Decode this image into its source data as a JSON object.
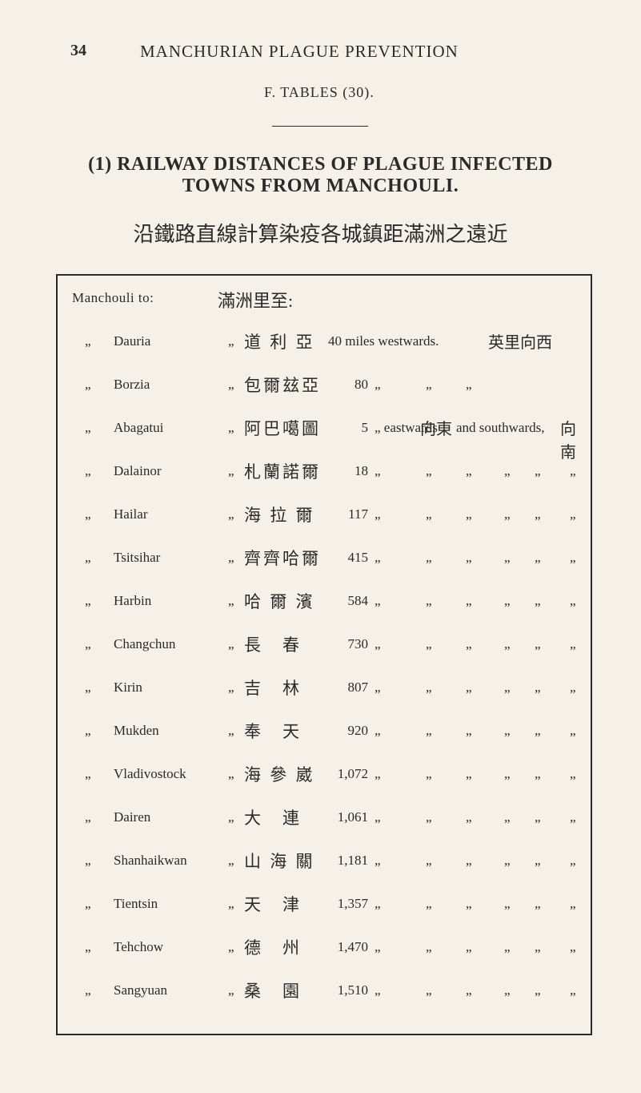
{
  "page_number": "34",
  "running_header": "MANCHURIAN  PLAGUE  PREVENTION",
  "section_label": "F.  TABLES  (30).",
  "main_heading_line1": "(1) RAILWAY DISTANCES OF PLAGUE INFECTED",
  "main_heading_line2": "TOWNS FROM MANCHOULI.",
  "chinese_heading": "沿鐵路直線計算染疫各城鎮距滿洲之遠近",
  "table_header_left": "Manchouli  to:",
  "table_header_chinese": "滿洲里至:",
  "rows": [
    {
      "place": "Dauria",
      "chinese": "道 利 亞",
      "first_row_text": "40 miles  westwards.",
      "first_row_chinese_end": "英里向西"
    },
    {
      "place": "Borzia",
      "chinese": "包爾玆亞",
      "miles": "80",
      "simple_dittos": true,
      "dittos": [
        "„",
        "„",
        "„"
      ]
    },
    {
      "place": "Abagatui",
      "chinese": "阿巴噶圖",
      "miles": "5",
      "abagatui_east": "„  eastwards",
      "abagatui_east_ch": "向東",
      "abagatui_south": "and  southwards,",
      "abagatui_south_ch": "向南"
    },
    {
      "place": "Dalainor",
      "chinese": "札蘭諾爾",
      "miles": "18",
      "full_dittos": true
    },
    {
      "place": "Hailar",
      "chinese": "海 拉 爾",
      "miles": "117",
      "full_dittos": true
    },
    {
      "place": "Tsitsihar",
      "chinese": "齊齊哈爾",
      "miles": "415",
      "full_dittos": true
    },
    {
      "place": "Harbin",
      "chinese": "哈 爾 濱",
      "miles": "584",
      "full_dittos": true
    },
    {
      "place": "Changchun",
      "chinese": "長　春",
      "miles": "730",
      "full_dittos": true
    },
    {
      "place": "Kirin",
      "chinese": "吉　林",
      "miles": "807",
      "full_dittos": true
    },
    {
      "place": "Mukden",
      "chinese": "奉　天",
      "miles": "920",
      "full_dittos": true
    },
    {
      "place": "Vladivostock",
      "chinese": "海 參 崴",
      "miles": "1,072",
      "full_dittos": true
    },
    {
      "place": "Dairen",
      "chinese": "大　連",
      "miles": "1,061",
      "full_dittos": true
    },
    {
      "place": "Shanhaikwan",
      "chinese": "山 海 關",
      "miles": "1,181",
      "full_dittos": true
    },
    {
      "place": "Tientsin",
      "chinese": "天　津",
      "miles": "1,357",
      "full_dittos": true
    },
    {
      "place": "Tehchow",
      "chinese": "德　州",
      "miles": "1,470",
      "full_dittos": true
    },
    {
      "place": "Sangyuan",
      "chinese": "桑　園",
      "miles": "1,510",
      "full_dittos": true
    }
  ],
  "ditto_symbol": "„"
}
